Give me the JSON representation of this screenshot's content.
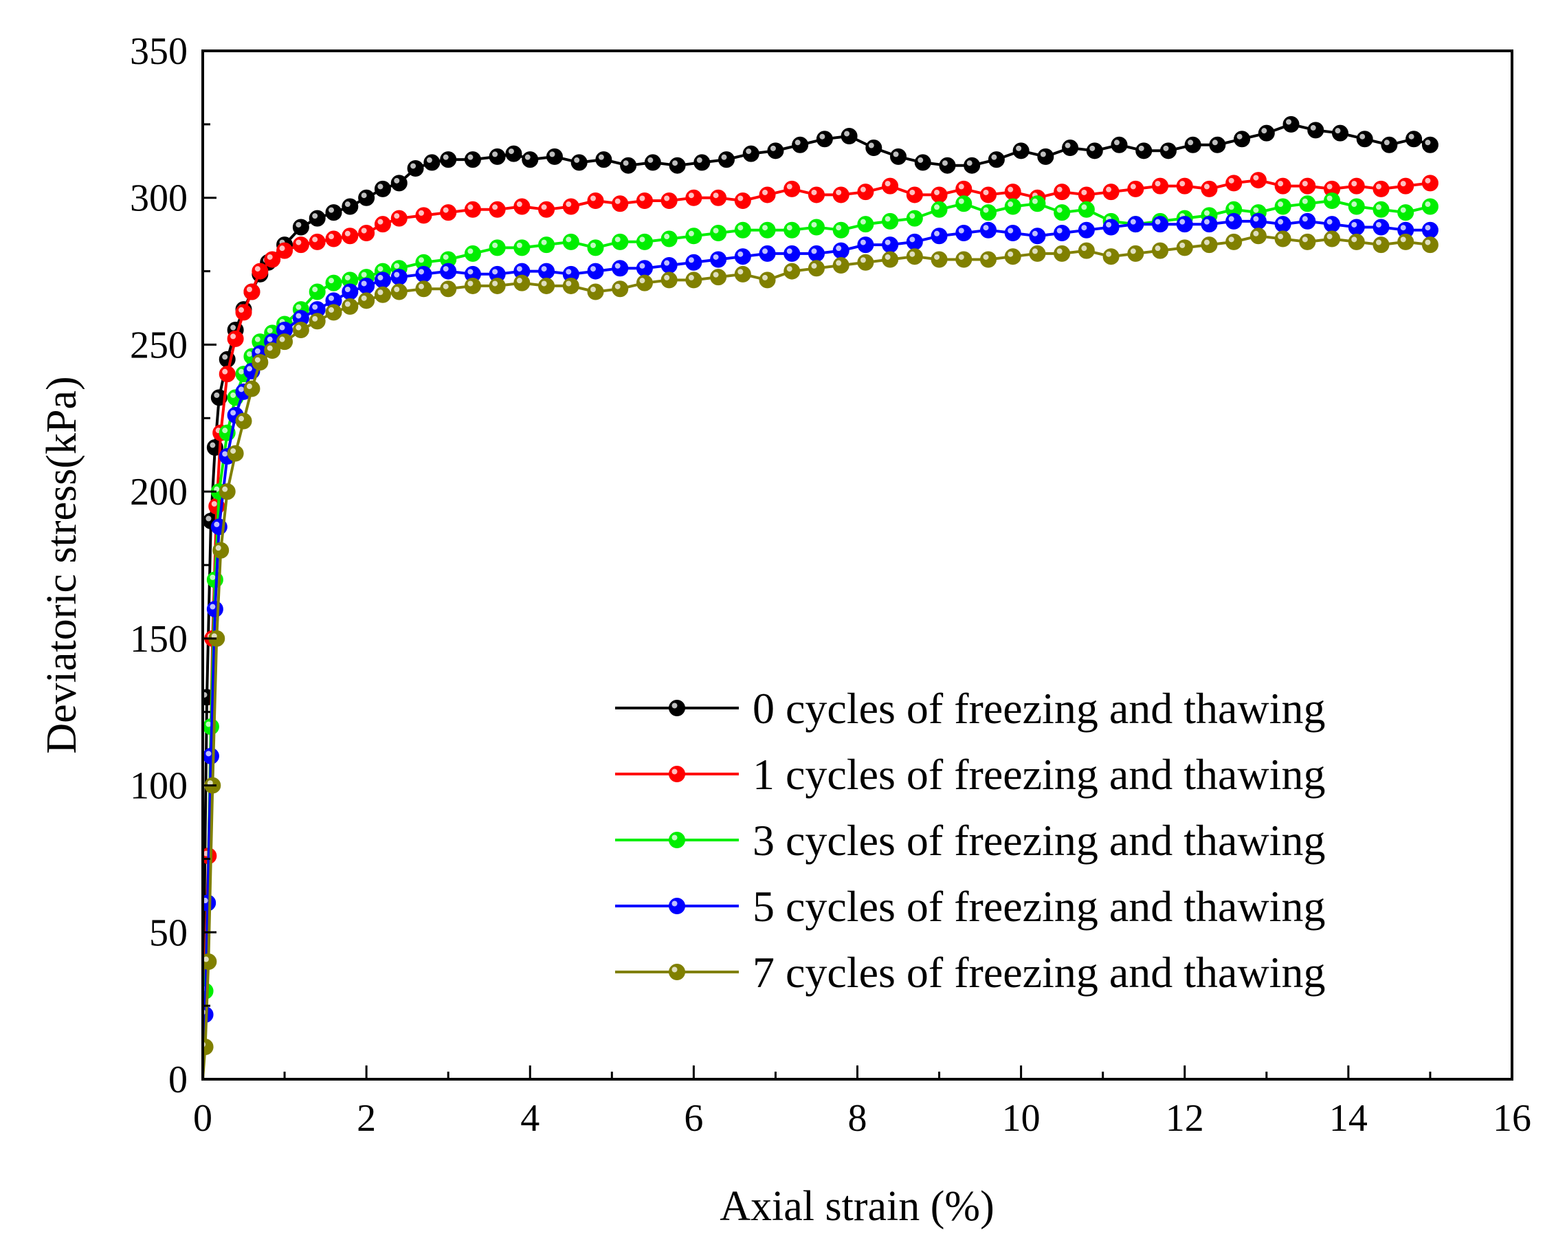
{
  "chart_data": {
    "type": "line",
    "title": "",
    "xlabel": "Axial strain (%)",
    "ylabel": "Deviatoric stress(kPa)",
    "xlim": [
      0,
      16
    ],
    "ylim": [
      0,
      350
    ],
    "xticks": [
      0,
      2,
      4,
      6,
      8,
      10,
      12,
      14,
      16
    ],
    "yticks": [
      0,
      50,
      100,
      150,
      200,
      250,
      300,
      350
    ],
    "xtick_labels": [
      "0",
      "2",
      "4",
      "6",
      "8",
      "10",
      "12",
      "14",
      "16"
    ],
    "ytick_labels": [
      "0",
      "50",
      "100",
      "150",
      "200",
      "250",
      "300",
      "350"
    ],
    "grid": false,
    "legend_position": "bottom-right",
    "series": [
      {
        "name": "0 cycles of freezing and thawing",
        "color": "#000000",
        "x": [
          0,
          0.02,
          0.05,
          0.1,
          0.15,
          0.2,
          0.3,
          0.4,
          0.5,
          0.6,
          0.7,
          0.8,
          1.0,
          1.2,
          1.4,
          1.6,
          1.8,
          2.0,
          2.2,
          2.4,
          2.6,
          2.8,
          3.0,
          3.3,
          3.6,
          3.8,
          4.0,
          4.3,
          4.6,
          4.9,
          5.2,
          5.5,
          5.8,
          6.1,
          6.4,
          6.7,
          7.0,
          7.3,
          7.6,
          7.9,
          8.2,
          8.5,
          8.8,
          9.1,
          9.4,
          9.7,
          10.0,
          10.3,
          10.6,
          10.9,
          11.2,
          11.5,
          11.8,
          12.1,
          12.4,
          12.7,
          13.0,
          13.3,
          13.6,
          13.9,
          14.2,
          14.5,
          14.8,
          15.0
        ],
        "y": [
          0,
          60,
          130,
          190,
          215,
          232,
          245,
          255,
          262,
          268,
          274,
          278,
          284,
          290,
          293,
          295,
          297,
          300,
          303,
          305,
          310,
          312,
          313,
          313,
          314,
          315,
          313,
          314,
          312,
          313,
          311,
          312,
          311,
          312,
          313,
          315,
          316,
          318,
          320,
          321,
          317,
          314,
          312,
          311,
          311,
          313,
          316,
          314,
          317,
          316,
          318,
          316,
          316,
          318,
          318,
          320,
          322,
          325,
          323,
          322,
          320,
          318,
          320,
          318
        ]
      },
      {
        "name": "1 cycles of freezing and thawing",
        "color": "#ff0000",
        "x": [
          0,
          0.03,
          0.07,
          0.12,
          0.17,
          0.22,
          0.3,
          0.4,
          0.5,
          0.6,
          0.7,
          0.85,
          1.0,
          1.2,
          1.4,
          1.6,
          1.8,
          2.0,
          2.2,
          2.4,
          2.7,
          3.0,
          3.3,
          3.6,
          3.9,
          4.2,
          4.5,
          4.8,
          5.1,
          5.4,
          5.7,
          6.0,
          6.3,
          6.6,
          6.9,
          7.2,
          7.5,
          7.8,
          8.1,
          8.4,
          8.7,
          9.0,
          9.3,
          9.6,
          9.9,
          10.2,
          10.5,
          10.8,
          11.1,
          11.4,
          11.7,
          12.0,
          12.3,
          12.6,
          12.9,
          13.2,
          13.5,
          13.8,
          14.1,
          14.4,
          14.7,
          15.0
        ],
        "y": [
          0,
          40,
          76,
          150,
          195,
          220,
          240,
          252,
          261,
          268,
          275,
          279,
          282,
          284,
          285,
          286,
          287,
          288,
          291,
          293,
          294,
          295,
          296,
          296,
          297,
          296,
          297,
          299,
          298,
          299,
          299,
          300,
          300,
          299,
          301,
          303,
          301,
          301,
          302,
          304,
          301,
          301,
          303,
          301,
          302,
          300,
          302,
          301,
          302,
          303,
          304,
          304,
          303,
          305,
          306,
          304,
          304,
          303,
          304,
          303,
          304,
          305
        ]
      },
      {
        "name": "3 cycles of freezing and thawing",
        "color": "#00ee00",
        "x": [
          0,
          0.03,
          0.06,
          0.1,
          0.15,
          0.2,
          0.3,
          0.4,
          0.5,
          0.6,
          0.7,
          0.85,
          1.0,
          1.2,
          1.4,
          1.6,
          1.8,
          2.0,
          2.2,
          2.4,
          2.7,
          3.0,
          3.3,
          3.6,
          3.9,
          4.2,
          4.5,
          4.8,
          5.1,
          5.4,
          5.7,
          6.0,
          6.3,
          6.6,
          6.9,
          7.2,
          7.5,
          7.8,
          8.1,
          8.4,
          8.7,
          9.0,
          9.3,
          9.6,
          9.9,
          10.2,
          10.5,
          10.8,
          11.1,
          11.4,
          11.7,
          12.0,
          12.3,
          12.6,
          12.9,
          13.2,
          13.5,
          13.8,
          14.1,
          14.4,
          14.7,
          15.0
        ],
        "y": [
          0,
          30,
          60,
          120,
          170,
          200,
          220,
          232,
          240,
          246,
          251,
          254,
          257,
          262,
          268,
          271,
          272,
          273,
          275,
          276,
          278,
          279,
          281,
          283,
          283,
          284,
          285,
          283,
          285,
          285,
          286,
          287,
          288,
          289,
          289,
          289,
          290,
          289,
          291,
          292,
          293,
          296,
          298,
          295,
          297,
          298,
          295,
          296,
          292,
          291,
          292,
          293,
          294,
          296,
          295,
          297,
          298,
          299,
          297,
          296,
          295,
          297
        ]
      },
      {
        "name": "5 cycles of freezing and thawing",
        "color": "#0000ff",
        "x": [
          0,
          0.03,
          0.06,
          0.1,
          0.15,
          0.2,
          0.3,
          0.4,
          0.5,
          0.6,
          0.7,
          0.85,
          1.0,
          1.2,
          1.4,
          1.6,
          1.8,
          2.0,
          2.2,
          2.4,
          2.7,
          3.0,
          3.3,
          3.6,
          3.9,
          4.2,
          4.5,
          4.8,
          5.1,
          5.4,
          5.7,
          6.0,
          6.3,
          6.6,
          6.9,
          7.2,
          7.5,
          7.8,
          8.1,
          8.4,
          8.7,
          9.0,
          9.3,
          9.6,
          9.9,
          10.2,
          10.5,
          10.8,
          11.1,
          11.4,
          11.7,
          12.0,
          12.3,
          12.6,
          12.9,
          13.2,
          13.5,
          13.8,
          14.1,
          14.4,
          14.7,
          15.0
        ],
        "y": [
          0,
          22,
          60,
          110,
          160,
          188,
          212,
          226,
          234,
          241,
          247,
          251,
          255,
          259,
          262,
          265,
          268,
          270,
          272,
          273,
          274,
          275,
          274,
          274,
          275,
          275,
          274,
          275,
          276,
          276,
          277,
          278,
          279,
          280,
          281,
          281,
          281,
          282,
          284,
          284,
          285,
          287,
          288,
          289,
          288,
          287,
          288,
          289,
          290,
          291,
          291,
          291,
          291,
          292,
          292,
          291,
          292,
          291,
          290,
          290,
          289,
          289
        ]
      },
      {
        "name": "7 cycles of freezing and thawing",
        "color": "#808000",
        "x": [
          0,
          0.03,
          0.07,
          0.12,
          0.17,
          0.22,
          0.3,
          0.4,
          0.5,
          0.6,
          0.7,
          0.85,
          1.0,
          1.2,
          1.4,
          1.6,
          1.8,
          2.0,
          2.2,
          2.4,
          2.7,
          3.0,
          3.3,
          3.6,
          3.9,
          4.2,
          4.5,
          4.8,
          5.1,
          5.4,
          5.7,
          6.0,
          6.3,
          6.6,
          6.9,
          7.2,
          7.5,
          7.8,
          8.1,
          8.4,
          8.7,
          9.0,
          9.3,
          9.6,
          9.9,
          10.2,
          10.5,
          10.8,
          11.1,
          11.4,
          11.7,
          12.0,
          12.3,
          12.6,
          12.9,
          13.2,
          13.5,
          13.8,
          14.1,
          14.4,
          14.7,
          15.0
        ],
        "y": [
          0,
          11,
          40,
          100,
          150,
          180,
          200,
          213,
          224,
          235,
          244,
          248,
          251,
          255,
          258,
          261,
          263,
          265,
          267,
          268,
          269,
          269,
          270,
          270,
          271,
          270,
          270,
          268,
          269,
          271,
          272,
          272,
          273,
          274,
          272,
          275,
          276,
          277,
          278,
          279,
          280,
          279,
          279,
          279,
          280,
          281,
          281,
          282,
          280,
          281,
          282,
          283,
          284,
          285,
          287,
          286,
          285,
          286,
          285,
          284,
          285,
          284
        ]
      }
    ]
  }
}
